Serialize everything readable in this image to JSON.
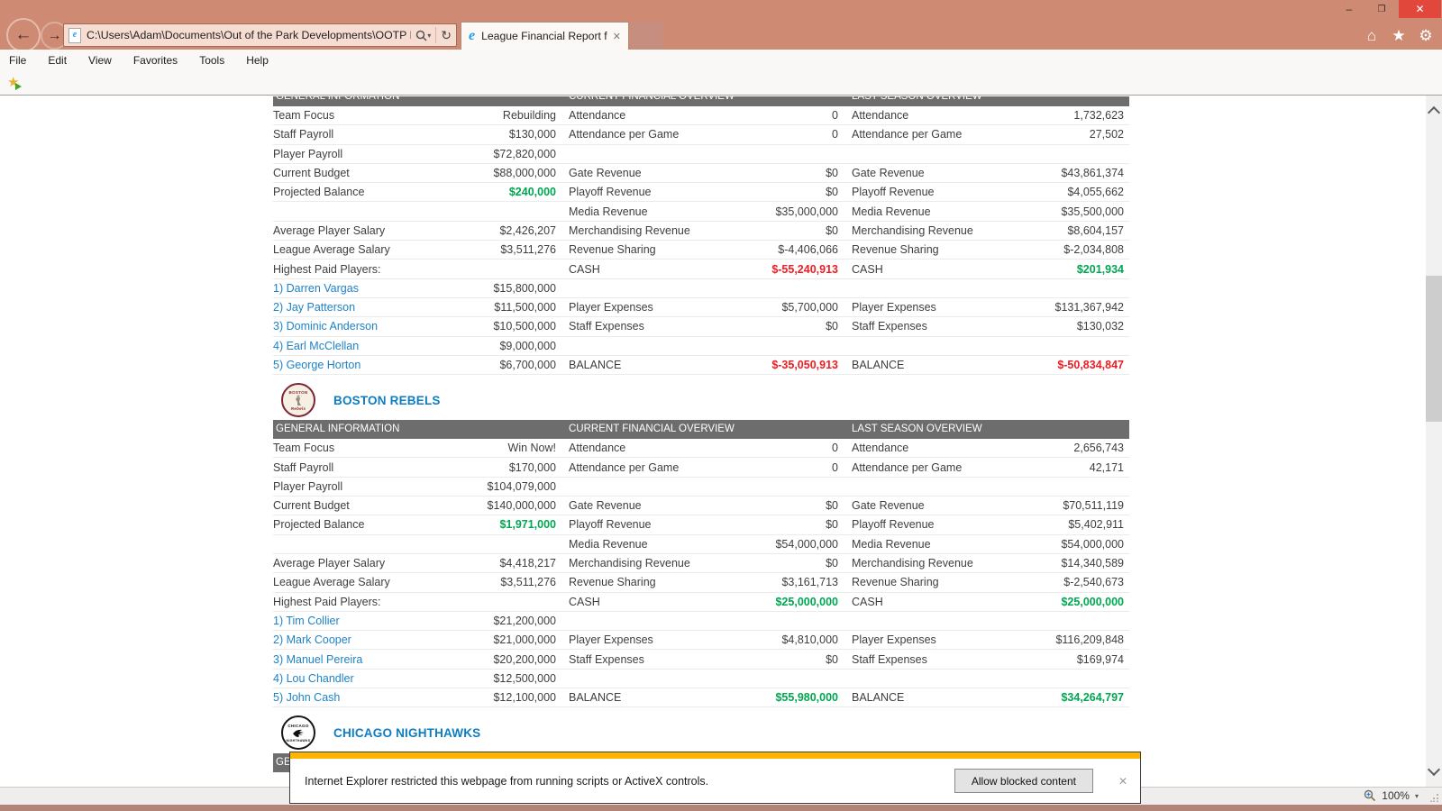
{
  "window": {
    "minimize": "–",
    "restore": "❐",
    "close": "✕"
  },
  "browser": {
    "address_url": "C:\\Users\\Adam\\Documents\\Out of the Park Developments\\OOTP Ba",
    "tab_title": "League Financial Report for...",
    "tab_close": "✕",
    "menu": [
      "File",
      "Edit",
      "View",
      "Favorites",
      "Tools",
      "Help"
    ],
    "status_zoom": "100%",
    "notification": {
      "text": "Internet Explorer restricted this webpage from running scripts or ActiveX controls.",
      "button": "Allow blocked content",
      "close": "✕"
    }
  },
  "report": {
    "section_headers": [
      "GENERAL INFORMATION",
      "CURRENT FINANCIAL OVERVIEW",
      "LAST SEASON OVERVIEW"
    ],
    "teams": [
      {
        "name": "",
        "rows": [
          [
            [
              "Team Focus",
              ""
            ],
            [
              "Rebuilding",
              ""
            ],
            [
              "Attendance",
              ""
            ],
            [
              "0",
              ""
            ],
            [
              "Attendance",
              ""
            ],
            [
              "1,732,623",
              ""
            ]
          ],
          [
            [
              "Staff Payroll",
              ""
            ],
            [
              "$130,000",
              ""
            ],
            [
              "Attendance per Game",
              ""
            ],
            [
              "0",
              ""
            ],
            [
              "Attendance per Game",
              ""
            ],
            [
              "27,502",
              ""
            ]
          ],
          [
            [
              "Player Payroll",
              ""
            ],
            [
              "$72,820,000",
              ""
            ],
            [
              "",
              ""
            ],
            [
              "",
              ""
            ],
            [
              "",
              ""
            ],
            [
              "",
              ""
            ]
          ],
          [
            [
              "Current Budget",
              ""
            ],
            [
              "$88,000,000",
              ""
            ],
            [
              "Gate Revenue",
              ""
            ],
            [
              "$0",
              ""
            ],
            [
              "Gate Revenue",
              ""
            ],
            [
              "$43,861,374",
              ""
            ]
          ],
          [
            [
              "Projected Balance",
              ""
            ],
            [
              "$240,000",
              "g"
            ],
            [
              "Playoff Revenue",
              ""
            ],
            [
              "$0",
              ""
            ],
            [
              "Playoff Revenue",
              ""
            ],
            [
              "$4,055,662",
              ""
            ]
          ],
          [
            [
              "",
              ""
            ],
            [
              "",
              ""
            ],
            [
              "Media Revenue",
              ""
            ],
            [
              "$35,000,000",
              ""
            ],
            [
              "Media Revenue",
              ""
            ],
            [
              "$35,500,000",
              ""
            ]
          ],
          [
            [
              "Average Player Salary",
              ""
            ],
            [
              "$2,426,207",
              ""
            ],
            [
              "Merchandising Revenue",
              ""
            ],
            [
              "$0",
              ""
            ],
            [
              "Merchandising Revenue",
              ""
            ],
            [
              "$8,604,157",
              ""
            ]
          ],
          [
            [
              "League Average Salary",
              ""
            ],
            [
              "$3,511,276",
              ""
            ],
            [
              "Revenue Sharing",
              ""
            ],
            [
              "$-4,406,066",
              ""
            ],
            [
              "Revenue Sharing",
              ""
            ],
            [
              "$-2,034,808",
              ""
            ]
          ],
          [
            [
              "Highest Paid Players:",
              ""
            ],
            [
              "",
              ""
            ],
            [
              "CASH",
              ""
            ],
            [
              "$-55,240,913",
              "r"
            ],
            [
              "CASH",
              ""
            ],
            [
              "$201,934",
              "g"
            ]
          ],
          [
            [
              "1) Darren Vargas",
              "l"
            ],
            [
              "$15,800,000",
              ""
            ],
            [
              "",
              ""
            ],
            [
              "",
              ""
            ],
            [
              "",
              ""
            ],
            [
              "",
              ""
            ]
          ],
          [
            [
              "2) Jay Patterson",
              "l"
            ],
            [
              "$11,500,000",
              ""
            ],
            [
              "Player Expenses",
              ""
            ],
            [
              "$5,700,000",
              ""
            ],
            [
              "Player Expenses",
              ""
            ],
            [
              "$131,367,942",
              ""
            ]
          ],
          [
            [
              "3) Dominic Anderson",
              "l"
            ],
            [
              "$10,500,000",
              ""
            ],
            [
              "Staff Expenses",
              ""
            ],
            [
              "$0",
              ""
            ],
            [
              "Staff Expenses",
              ""
            ],
            [
              "$130,032",
              ""
            ]
          ],
          [
            [
              "4) Earl McClellan",
              "l"
            ],
            [
              "$9,000,000",
              ""
            ],
            [
              "",
              ""
            ],
            [
              "",
              ""
            ],
            [
              "",
              ""
            ],
            [
              "",
              ""
            ]
          ],
          [
            [
              "5) George Horton",
              "l"
            ],
            [
              "$6,700,000",
              ""
            ],
            [
              "BALANCE",
              ""
            ],
            [
              "$-35,050,913",
              "r"
            ],
            [
              "BALANCE",
              ""
            ],
            [
              "$-50,834,847",
              "r"
            ]
          ]
        ]
      },
      {
        "name": "BOSTON REBELS",
        "logo_top": "BOSTON",
        "logo_bottom": "Rebels",
        "rows": [
          [
            [
              "Team Focus",
              ""
            ],
            [
              "Win Now!",
              ""
            ],
            [
              "Attendance",
              ""
            ],
            [
              "0",
              ""
            ],
            [
              "Attendance",
              ""
            ],
            [
              "2,656,743",
              ""
            ]
          ],
          [
            [
              "Staff Payroll",
              ""
            ],
            [
              "$170,000",
              ""
            ],
            [
              "Attendance per Game",
              ""
            ],
            [
              "0",
              ""
            ],
            [
              "Attendance per Game",
              ""
            ],
            [
              "42,171",
              ""
            ]
          ],
          [
            [
              "Player Payroll",
              ""
            ],
            [
              "$104,079,000",
              ""
            ],
            [
              "",
              ""
            ],
            [
              "",
              ""
            ],
            [
              "",
              ""
            ],
            [
              "",
              ""
            ]
          ],
          [
            [
              "Current Budget",
              ""
            ],
            [
              "$140,000,000",
              ""
            ],
            [
              "Gate Revenue",
              ""
            ],
            [
              "$0",
              ""
            ],
            [
              "Gate Revenue",
              ""
            ],
            [
              "$70,511,119",
              ""
            ]
          ],
          [
            [
              "Projected Balance",
              ""
            ],
            [
              "$1,971,000",
              "g"
            ],
            [
              "Playoff Revenue",
              ""
            ],
            [
              "$0",
              ""
            ],
            [
              "Playoff Revenue",
              ""
            ],
            [
              "$5,402,911",
              ""
            ]
          ],
          [
            [
              "",
              ""
            ],
            [
              "",
              ""
            ],
            [
              "Media Revenue",
              ""
            ],
            [
              "$54,000,000",
              ""
            ],
            [
              "Media Revenue",
              ""
            ],
            [
              "$54,000,000",
              ""
            ]
          ],
          [
            [
              "Average Player Salary",
              ""
            ],
            [
              "$4,418,217",
              ""
            ],
            [
              "Merchandising Revenue",
              ""
            ],
            [
              "$0",
              ""
            ],
            [
              "Merchandising Revenue",
              ""
            ],
            [
              "$14,340,589",
              ""
            ]
          ],
          [
            [
              "League Average Salary",
              ""
            ],
            [
              "$3,511,276",
              ""
            ],
            [
              "Revenue Sharing",
              ""
            ],
            [
              "$3,161,713",
              ""
            ],
            [
              "Revenue Sharing",
              ""
            ],
            [
              "$-2,540,673",
              ""
            ]
          ],
          [
            [
              "Highest Paid Players:",
              ""
            ],
            [
              "",
              ""
            ],
            [
              "CASH",
              ""
            ],
            [
              "$25,000,000",
              "g"
            ],
            [
              "CASH",
              ""
            ],
            [
              "$25,000,000",
              "g"
            ]
          ],
          [
            [
              "1) Tim Collier",
              "l"
            ],
            [
              "$21,200,000",
              ""
            ],
            [
              "",
              ""
            ],
            [
              "",
              ""
            ],
            [
              "",
              ""
            ],
            [
              "",
              ""
            ]
          ],
          [
            [
              "2) Mark Cooper",
              "l"
            ],
            [
              "$21,000,000",
              ""
            ],
            [
              "Player Expenses",
              ""
            ],
            [
              "$4,810,000",
              ""
            ],
            [
              "Player Expenses",
              ""
            ],
            [
              "$116,209,848",
              ""
            ]
          ],
          [
            [
              "3) Manuel Pereira",
              "l"
            ],
            [
              "$20,200,000",
              ""
            ],
            [
              "Staff Expenses",
              ""
            ],
            [
              "$0",
              ""
            ],
            [
              "Staff Expenses",
              ""
            ],
            [
              "$169,974",
              ""
            ]
          ],
          [
            [
              "4) Lou Chandler",
              "l"
            ],
            [
              "$12,500,000",
              ""
            ],
            [
              "",
              ""
            ],
            [
              "",
              ""
            ],
            [
              "",
              ""
            ],
            [
              "",
              ""
            ]
          ],
          [
            [
              "5) John Cash",
              "l"
            ],
            [
              "$12,100,000",
              ""
            ],
            [
              "BALANCE",
              ""
            ],
            [
              "$55,980,000",
              "g"
            ],
            [
              "BALANCE",
              ""
            ],
            [
              "$34,264,797",
              "g"
            ]
          ]
        ]
      },
      {
        "name": "CHICAGO NIGHTHAWKS",
        "logo_top": "CHICAGO",
        "logo_bottom": "NIGHTHAWKS",
        "rows": []
      }
    ]
  },
  "colors": {
    "titlebar": "#cf8a74",
    "positive_green": "#00a651",
    "negative_red": "#ee1c23",
    "link_blue": "#1e82c6",
    "table_header_bg": "#6d6d6d",
    "notification_accent": "#ffb400"
  }
}
